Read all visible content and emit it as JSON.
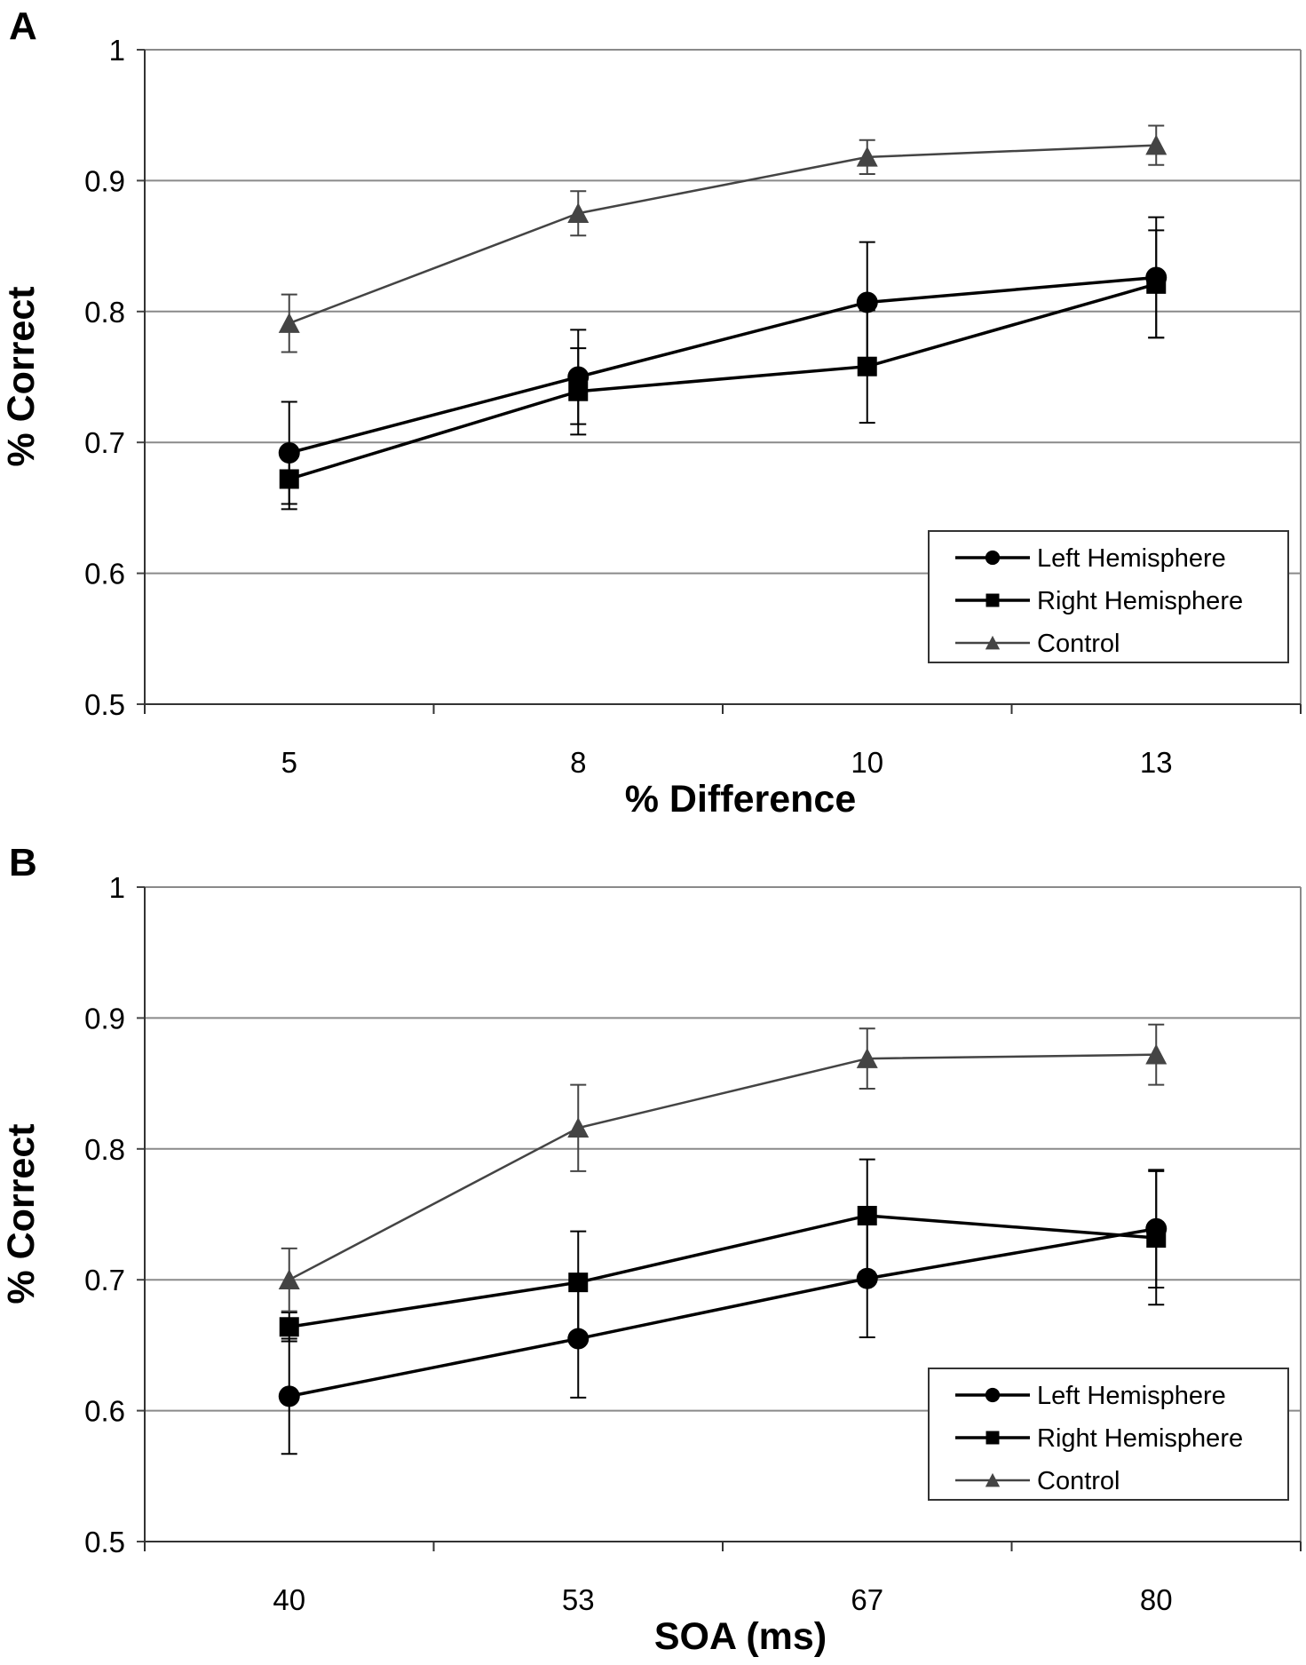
{
  "chart_data": [
    {
      "type": "line",
      "panel_label": "A",
      "categories": [
        "5",
        "8",
        "10",
        "13"
      ],
      "xlabel": "% Difference",
      "ylabel": "% Correct",
      "ylim": [
        0.5,
        1
      ],
      "yticks": [
        "0.5",
        "0.6",
        "0.7",
        "0.8",
        "0.9",
        "1"
      ],
      "grid": true,
      "legend_position": "bottom-right",
      "series": [
        {
          "name": "Left Hemisphere",
          "marker": "circle",
          "color": "#000000",
          "values": [
            0.692,
            0.75,
            0.807,
            0.826
          ],
          "errors": [
            0.039,
            0.036,
            0.046,
            0.046
          ]
        },
        {
          "name": "Right Hemisphere",
          "marker": "square",
          "color": "#000000",
          "values": [
            0.672,
            0.739,
            0.758,
            0.821
          ],
          "errors": [
            0.023,
            0.033,
            0.043,
            0.041
          ]
        },
        {
          "name": "Control",
          "marker": "triangle",
          "color": "#444444",
          "values": [
            0.791,
            0.875,
            0.918,
            0.927
          ],
          "errors": [
            0.022,
            0.017,
            0.013,
            0.015
          ]
        }
      ]
    },
    {
      "type": "line",
      "panel_label": "B",
      "categories": [
        "40",
        "53",
        "67",
        "80"
      ],
      "xlabel": "SOA (ms)",
      "ylabel": "% Correct",
      "ylim": [
        0.5,
        1
      ],
      "yticks": [
        "0.5",
        "0.6",
        "0.7",
        "0.8",
        "0.9",
        "1"
      ],
      "grid": true,
      "legend_position": "bottom-right",
      "series": [
        {
          "name": "Left Hemisphere",
          "marker": "circle",
          "color": "#000000",
          "values": [
            0.611,
            0.655,
            0.701,
            0.739
          ],
          "errors": [
            0.044,
            0.045,
            0.045,
            0.045
          ]
        },
        {
          "name": "Right Hemisphere",
          "marker": "square",
          "color": "#000000",
          "values": [
            0.664,
            0.698,
            0.749,
            0.732
          ],
          "errors": [
            0.011,
            0.039,
            0.043,
            0.051
          ]
        },
        {
          "name": "Control",
          "marker": "triangle",
          "color": "#444444",
          "values": [
            0.7,
            0.816,
            0.869,
            0.872
          ],
          "errors": [
            0.024,
            0.033,
            0.023,
            0.023
          ]
        }
      ]
    }
  ]
}
